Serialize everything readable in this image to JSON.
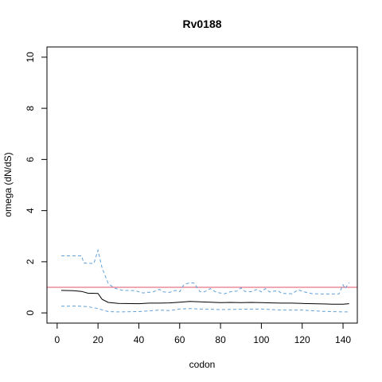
{
  "chart_data": {
    "type": "line",
    "title": "Rv0188",
    "xlabel": "codon",
    "ylabel": "omega (dN/dS)",
    "xlim": [
      -5,
      147
    ],
    "ylim": [
      -0.4,
      10.4
    ],
    "x_ticks": [
      0,
      20,
      40,
      60,
      80,
      100,
      120,
      140
    ],
    "y_ticks": [
      0,
      2,
      4,
      6,
      8,
      10
    ],
    "x_tick_labels": [
      "0",
      "20",
      "40",
      "60",
      "80",
      "100",
      "120",
      "140"
    ],
    "y_tick_labels": [
      "0",
      "2",
      "4",
      "6",
      "8",
      "10"
    ],
    "grid": false,
    "legend": "none",
    "reference_line": {
      "y": 1,
      "color": "#df536b"
    },
    "series": [
      {
        "style": "solid",
        "color": "#000000",
        "points": [
          [
            2,
            0.88
          ],
          [
            8,
            0.87
          ],
          [
            12,
            0.84
          ],
          [
            15,
            0.77
          ],
          [
            20,
            0.76
          ],
          [
            22,
            0.53
          ],
          [
            25,
            0.41
          ],
          [
            30,
            0.37
          ],
          [
            40,
            0.36
          ],
          [
            45,
            0.38
          ],
          [
            50,
            0.38
          ],
          [
            55,
            0.39
          ],
          [
            60,
            0.42
          ],
          [
            65,
            0.45
          ],
          [
            70,
            0.43
          ],
          [
            75,
            0.42
          ],
          [
            80,
            0.4
          ],
          [
            85,
            0.41
          ],
          [
            90,
            0.4
          ],
          [
            95,
            0.41
          ],
          [
            100,
            0.4
          ],
          [
            105,
            0.39
          ],
          [
            110,
            0.38
          ],
          [
            115,
            0.38
          ],
          [
            120,
            0.37
          ],
          [
            125,
            0.36
          ],
          [
            130,
            0.35
          ],
          [
            135,
            0.34
          ],
          [
            140,
            0.34
          ],
          [
            143,
            0.36
          ]
        ]
      },
      {
        "style": "dashed",
        "color": "#61a0d8",
        "points": [
          [
            2,
            2.23
          ],
          [
            12,
            2.23
          ],
          [
            13,
            1.95
          ],
          [
            18,
            1.93
          ],
          [
            20,
            2.45
          ],
          [
            22,
            1.75
          ],
          [
            25,
            1.15
          ],
          [
            28,
            0.97
          ],
          [
            32,
            0.88
          ],
          [
            38,
            0.87
          ],
          [
            42,
            0.78
          ],
          [
            47,
            0.82
          ],
          [
            50,
            0.92
          ],
          [
            52,
            0.82
          ],
          [
            55,
            0.8
          ],
          [
            58,
            0.88
          ],
          [
            60,
            0.83
          ],
          [
            62,
            1.1
          ],
          [
            65,
            1.18
          ],
          [
            67,
            1.17
          ],
          [
            70,
            0.83
          ],
          [
            72,
            0.82
          ],
          [
            75,
            0.95
          ],
          [
            78,
            0.8
          ],
          [
            82,
            0.75
          ],
          [
            85,
            0.83
          ],
          [
            88,
            0.85
          ],
          [
            90,
            0.98
          ],
          [
            92,
            0.84
          ],
          [
            95,
            0.83
          ],
          [
            98,
            0.92
          ],
          [
            100,
            0.82
          ],
          [
            102,
            0.95
          ],
          [
            104,
            0.82
          ],
          [
            108,
            0.87
          ],
          [
            110,
            0.76
          ],
          [
            115,
            0.75
          ],
          [
            118,
            0.9
          ],
          [
            121,
            0.82
          ],
          [
            125,
            0.75
          ],
          [
            130,
            0.74
          ],
          [
            138,
            0.74
          ],
          [
            140,
            1.1
          ],
          [
            141,
            0.95
          ],
          [
            143,
            1.18
          ]
        ]
      },
      {
        "style": "dashed",
        "color": "#61a0d8",
        "points": [
          [
            2,
            0.26
          ],
          [
            10,
            0.27
          ],
          [
            15,
            0.24
          ],
          [
            20,
            0.17
          ],
          [
            22,
            0.12
          ],
          [
            25,
            0.05
          ],
          [
            30,
            0.04
          ],
          [
            40,
            0.05
          ],
          [
            50,
            0.11
          ],
          [
            55,
            0.09
          ],
          [
            60,
            0.15
          ],
          [
            65,
            0.17
          ],
          [
            70,
            0.15
          ],
          [
            80,
            0.13
          ],
          [
            90,
            0.14
          ],
          [
            100,
            0.15
          ],
          [
            105,
            0.13
          ],
          [
            110,
            0.11
          ],
          [
            120,
            0.11
          ],
          [
            130,
            0.06
          ],
          [
            140,
            0.04
          ],
          [
            143,
            0.04
          ]
        ]
      }
    ]
  }
}
